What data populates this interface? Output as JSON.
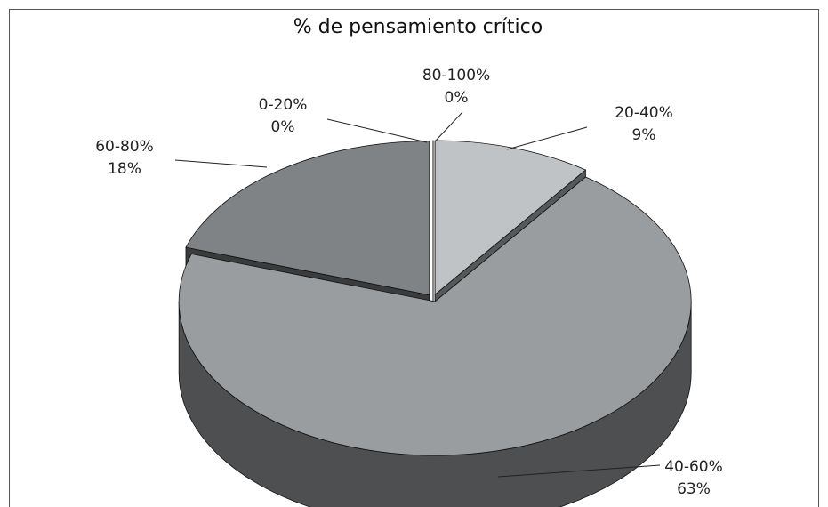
{
  "chart_data": {
    "type": "pie3d",
    "title": "% de pensamiento crítico",
    "categories": [
      "0-20%",
      "20-40%",
      "40-60%",
      "60-80%",
      "80-100%"
    ],
    "values": [
      0,
      9,
      63,
      18,
      0
    ],
    "value_labels": [
      "0%",
      "9%",
      "63%",
      "18%",
      "0%"
    ],
    "colors": [
      "#ffffff",
      "#c0c3c5",
      "#9a9d9f",
      "#7f8385",
      "#ffffff"
    ]
  }
}
